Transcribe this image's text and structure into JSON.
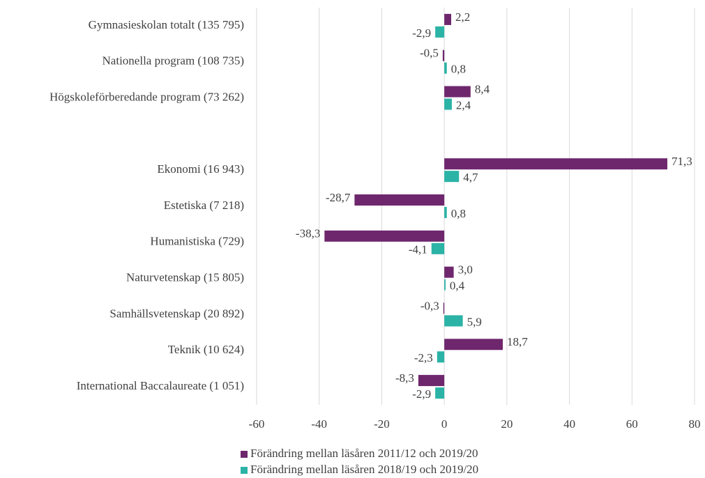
{
  "chart_data": {
    "type": "bar",
    "orientation": "horizontal",
    "categories": [
      "Gymnasieskolan totalt (135 795)",
      "Nationella program (108 735)",
      "Högskoleförberedande program (73 262)",
      null,
      "Ekonomi (16 943)",
      "Estetiska (7 218)",
      "Humanistiska (729)",
      "Naturvetenskap (15 805)",
      "Samhällsvetenskap (20 892)",
      "Teknik (10 624)",
      "International Baccalaureate (1 051)"
    ],
    "series": [
      {
        "name": "Förändring mellan läsåren 2011/12 och 2019/20",
        "color": "#6e276d",
        "values": [
          2.2,
          -0.5,
          8.4,
          null,
          71.3,
          -28.7,
          -38.3,
          3.0,
          -0.3,
          18.7,
          -8.3
        ],
        "value_labels": [
          "2,2",
          "-0,5",
          "8,4",
          null,
          "71,3",
          "-28,7",
          "-38,3",
          "3,0",
          "-0,3",
          "18,7",
          "-8,3"
        ]
      },
      {
        "name": "Förändring mellan läsåren 2018/19 och 2019/20",
        "color": "#2bb3a6",
        "values": [
          -2.9,
          0.8,
          2.4,
          null,
          4.7,
          0.8,
          -4.1,
          0.4,
          5.9,
          -2.3,
          -2.9
        ],
        "value_labels": [
          "-2,9",
          "0,8",
          "2,4",
          null,
          "4,7",
          "0,8",
          "-4,1",
          "0,4",
          "5,9",
          "-2,3",
          "-2,9"
        ]
      }
    ],
    "xlim": [
      -60,
      80
    ],
    "xticks": [
      -60,
      -40,
      -20,
      0,
      20,
      40,
      60,
      80
    ],
    "grid": true,
    "legend": "bottom"
  }
}
